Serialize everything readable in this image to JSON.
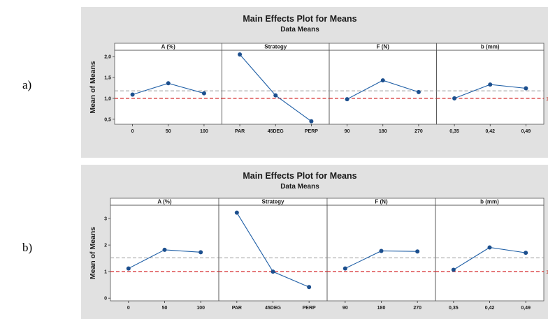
{
  "labels": {
    "a": "a)",
    "b": "b)"
  },
  "colors": {
    "background": "#e1e1e1",
    "plot_bg": "#ffffff",
    "series": "#1f5fa6",
    "marker": "#1c4f8e",
    "mean_line": "#9a9a9a",
    "ref_line": "#d62728"
  },
  "chart_data": [
    {
      "type": "line",
      "title": "Main Effects Plot for Means",
      "subtitle": "Data Means",
      "ylabel": "Mean of Means",
      "ylim": [
        0.38,
        2.15
      ],
      "yticks": [
        "0,5",
        "1,0",
        "1,5",
        "2,0"
      ],
      "ytick_values": [
        0.5,
        1.0,
        1.5,
        2.0
      ],
      "grand_mean": 1.18,
      "reference_line": {
        "value": 1.0,
        "label": "1"
      },
      "panels": [
        {
          "name": "A (%)",
          "categories": [
            "0",
            "50",
            "100"
          ],
          "values": [
            1.09,
            1.36,
            1.12
          ]
        },
        {
          "name": "Strategy",
          "categories": [
            "PAR",
            "45DEG",
            "PERP"
          ],
          "values": [
            2.05,
            1.07,
            0.45
          ]
        },
        {
          "name": "F (N)",
          "categories": [
            "90",
            "180",
            "270"
          ],
          "values": [
            0.98,
            1.43,
            1.15
          ]
        },
        {
          "name": "b (mm)",
          "categories": [
            "0,35",
            "0,42",
            "0,49"
          ],
          "values": [
            1.0,
            1.33,
            1.24
          ]
        }
      ]
    },
    {
      "type": "line",
      "title": "Main Effects Plot for Means",
      "subtitle": "Data Means",
      "ylabel": "Mean of Means",
      "ylim": [
        -0.1,
        3.5
      ],
      "yticks": [
        "0",
        "1",
        "2",
        "3"
      ],
      "ytick_values": [
        0,
        1,
        2,
        3
      ],
      "grand_mean": 1.52,
      "reference_line": {
        "value": 1.0,
        "label": "1"
      },
      "panels": [
        {
          "name": "A (%)",
          "categories": [
            "0",
            "50",
            "100"
          ],
          "values": [
            1.12,
            1.82,
            1.73
          ]
        },
        {
          "name": "Strategy",
          "categories": [
            "PAR",
            "45DEG",
            "PERP"
          ],
          "values": [
            3.22,
            1.0,
            0.42
          ]
        },
        {
          "name": "F (N)",
          "categories": [
            "90",
            "180",
            "270"
          ],
          "values": [
            1.12,
            1.78,
            1.76
          ]
        },
        {
          "name": "b (mm)",
          "categories": [
            "0,35",
            "0,42",
            "0,49"
          ],
          "values": [
            1.07,
            1.91,
            1.71
          ]
        }
      ]
    }
  ]
}
